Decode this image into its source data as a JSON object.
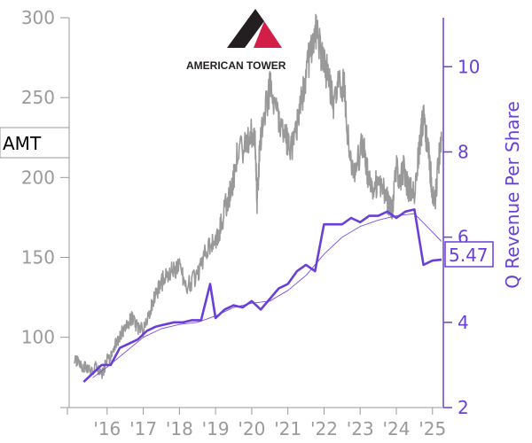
{
  "logo": {
    "text": "AMERICAN TOWER",
    "colors": {
      "dark": "#231f20",
      "accent": "#d31f47"
    }
  },
  "ticker": "AMT",
  "last_value_label": "5.47",
  "colors": {
    "price": "#999999",
    "revenue": "#6a3fd8",
    "ma": "#6a3fd8",
    "axis_left": "#9a9a9a"
  },
  "chart_data": {
    "type": "line",
    "title": "",
    "x_ticks": [
      "'16",
      "'17",
      "'18",
      "'19",
      "'20",
      "'21",
      "'22",
      "'23",
      "'24",
      "'25"
    ],
    "x_tick_years": [
      2016,
      2017,
      2018,
      2019,
      2020,
      2021,
      2022,
      2023,
      2024,
      2025
    ],
    "xlim": [
      2014.95,
      2025.3
    ],
    "y_left": {
      "label": "",
      "lim": [
        56,
        300
      ],
      "ticks": [
        100,
        150,
        200,
        250,
        300
      ]
    },
    "y_right": {
      "label": "Q Revenue Per Share",
      "lim": [
        2,
        11.15
      ],
      "ticks": [
        2,
        4,
        6,
        8,
        10
      ]
    },
    "series": [
      {
        "name": "",
        "axis": "left",
        "style": "price",
        "x": [
          2015.1,
          2015.25,
          2015.4,
          2015.55,
          2015.7,
          2015.85,
          2016.0,
          2016.1,
          2016.25,
          2016.4,
          2016.55,
          2016.7,
          2016.85,
          2017.0,
          2017.2,
          2017.4,
          2017.6,
          2017.8,
          2018.0,
          2018.2,
          2018.4,
          2018.6,
          2018.8,
          2019.0,
          2019.15,
          2019.3,
          2019.45,
          2019.6,
          2019.8,
          2020.0,
          2020.1,
          2020.15,
          2020.22,
          2020.35,
          2020.5,
          2020.65,
          2020.8,
          2020.95,
          2021.1,
          2021.25,
          2021.4,
          2021.55,
          2021.7,
          2021.8,
          2021.95,
          2022.1,
          2022.25,
          2022.4,
          2022.55,
          2022.7,
          2022.85,
          2023.0,
          2023.1,
          2023.2,
          2023.35,
          2023.5,
          2023.65,
          2023.8,
          2023.9,
          2024.0,
          2024.1,
          2024.2,
          2024.35,
          2024.5,
          2024.65,
          2024.75,
          2024.85,
          2024.95,
          2025.05,
          2025.15,
          2025.25
        ],
        "y": [
          86,
          83,
          81,
          79,
          82,
          76,
          86,
          88,
          96,
          103,
          107,
          112,
          106,
          104,
          118,
          129,
          138,
          141,
          143,
          133,
          136,
          145,
          158,
          158,
          171,
          184,
          194,
          215,
          219,
          229,
          221,
          182,
          220,
          239,
          256,
          246,
          230,
          224,
          217,
          233,
          252,
          270,
          287,
          293,
          274,
          264,
          247,
          256,
          258,
          214,
          203,
          216,
          222,
          203,
          192,
          198,
          193,
          182,
          181,
          208,
          198,
          205,
          192,
          192,
          222,
          238,
          222,
          203,
          180,
          206,
          223
        ]
      },
      {
        "name": "",
        "axis": "right",
        "style": "revenue",
        "x": [
          2015.35,
          2015.6,
          2015.85,
          2016.1,
          2016.35,
          2016.6,
          2016.85,
          2017.1,
          2017.35,
          2017.6,
          2017.85,
          2018.1,
          2018.35,
          2018.6,
          2018.85,
          2019.0,
          2019.25,
          2019.5,
          2019.75,
          2020.0,
          2020.25,
          2020.5,
          2020.75,
          2021.0,
          2021.25,
          2021.5,
          2021.75,
          2022.0,
          2022.25,
          2022.5,
          2022.75,
          2023.0,
          2023.25,
          2023.5,
          2023.75,
          2024.0,
          2024.25,
          2024.5,
          2024.75,
          2025.0,
          2025.25
        ],
        "y": [
          2.6,
          2.8,
          3.0,
          3.0,
          3.4,
          3.5,
          3.6,
          3.8,
          3.9,
          3.95,
          4.0,
          4.0,
          4.05,
          4.05,
          4.9,
          4.1,
          4.3,
          4.4,
          4.35,
          4.5,
          4.3,
          4.55,
          4.8,
          4.9,
          5.2,
          5.35,
          5.2,
          6.3,
          6.3,
          6.3,
          6.45,
          6.35,
          6.5,
          6.5,
          6.6,
          6.45,
          6.6,
          6.65,
          5.35,
          5.45,
          5.47
        ]
      },
      {
        "name": "",
        "axis": "right",
        "style": "ma",
        "x": [
          2015.6,
          2016.0,
          2016.5,
          2017.0,
          2017.5,
          2018.0,
          2018.5,
          2019.0,
          2019.5,
          2020.0,
          2020.5,
          2021.0,
          2021.5,
          2022.0,
          2022.5,
          2023.0,
          2023.5,
          2024.0,
          2024.5,
          2025.25
        ],
        "y": [
          2.7,
          2.95,
          3.3,
          3.65,
          3.85,
          3.95,
          4.0,
          4.15,
          4.35,
          4.45,
          4.5,
          4.75,
          5.1,
          5.6,
          6.0,
          6.25,
          6.4,
          6.5,
          6.55,
          5.9
        ]
      }
    ]
  }
}
